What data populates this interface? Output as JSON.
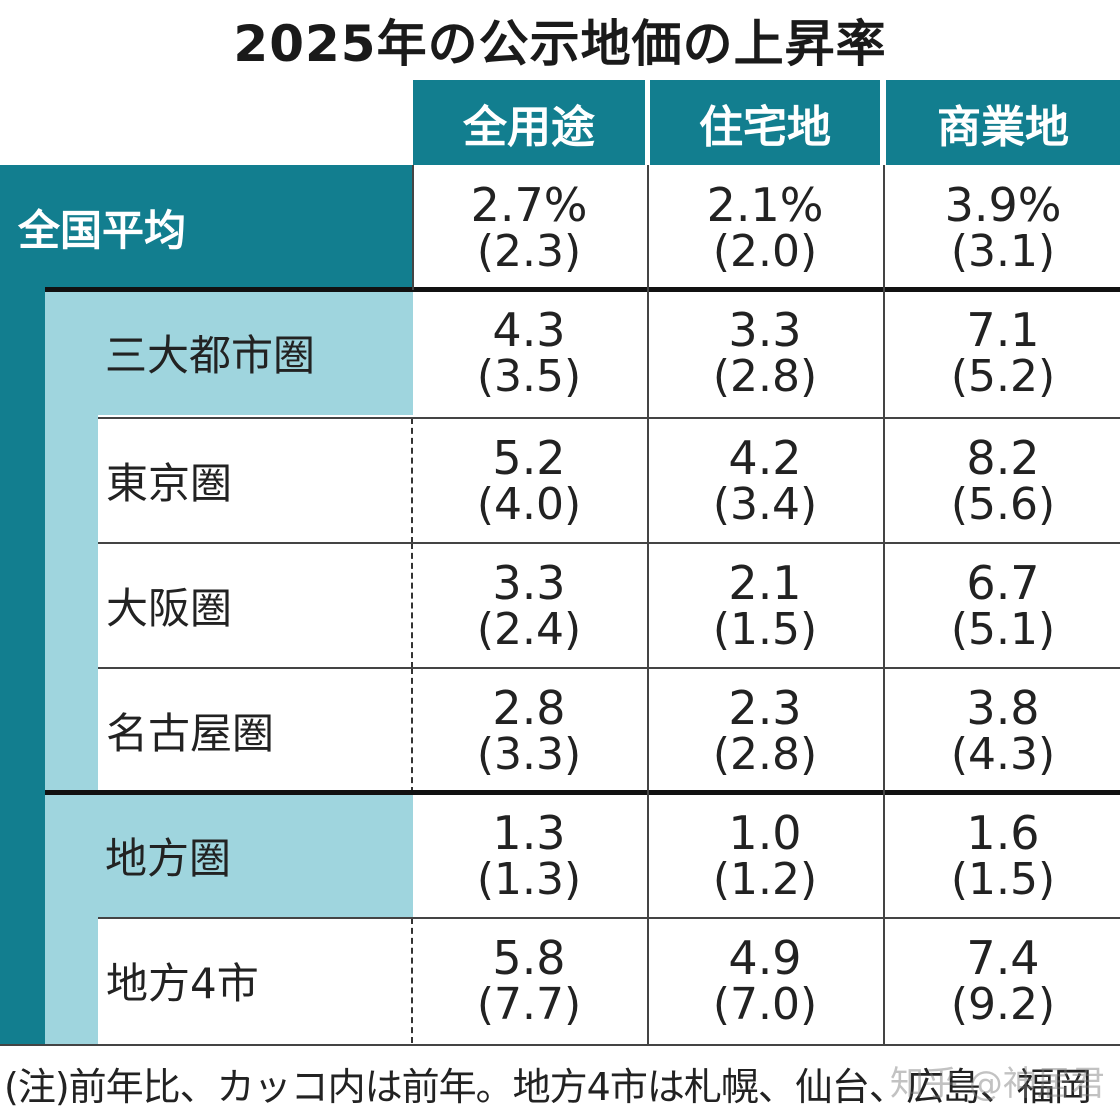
{
  "title": "2025年の公示地価の上昇率",
  "colors": {
    "header": "#127e8f",
    "group_band": "#9fd5de",
    "text": "#222222"
  },
  "chart_data": {
    "type": "table",
    "title": "2025年の公示地価の上昇率",
    "columns": [
      "全用途",
      "住宅地",
      "商業地"
    ],
    "rows": [
      {
        "label": "全国平均",
        "level": "national",
        "values": [
          "2.7%",
          "2.1%",
          "3.9%"
        ],
        "previous": [
          "(2.3)",
          "(2.0)",
          "(3.1)"
        ]
      },
      {
        "label": "三大都市圏",
        "level": "group",
        "values": [
          "4.3",
          "3.3",
          "7.1"
        ],
        "previous": [
          "(3.5)",
          "(2.8)",
          "(5.2)"
        ]
      },
      {
        "label": "東京圏",
        "level": "sub",
        "values": [
          "5.2",
          "4.2",
          "8.2"
        ],
        "previous": [
          "(4.0)",
          "(3.4)",
          "(5.6)"
        ]
      },
      {
        "label": "大阪圏",
        "level": "sub",
        "values": [
          "3.3",
          "2.1",
          "6.7"
        ],
        "previous": [
          "(2.4)",
          "(1.5)",
          "(5.1)"
        ]
      },
      {
        "label": "名古屋圏",
        "level": "sub",
        "values": [
          "2.8",
          "2.3",
          "3.8"
        ],
        "previous": [
          "(3.3)",
          "(2.8)",
          "(4.3)"
        ]
      },
      {
        "label": "地方圏",
        "level": "group",
        "values": [
          "1.3",
          "1.0",
          "1.6"
        ],
        "previous": [
          "(1.3)",
          "(1.2)",
          "(1.5)"
        ]
      },
      {
        "label": "地方4市",
        "level": "sub",
        "values": [
          "5.8",
          "4.9",
          "7.4"
        ],
        "previous": [
          "(7.7)",
          "(7.0)",
          "(9.2)"
        ]
      }
    ]
  },
  "note": "(注)前年比、カッコ内は前年。地方4市は札幌、仙台、広島、福岡",
  "watermark": "知乎 @神居君"
}
